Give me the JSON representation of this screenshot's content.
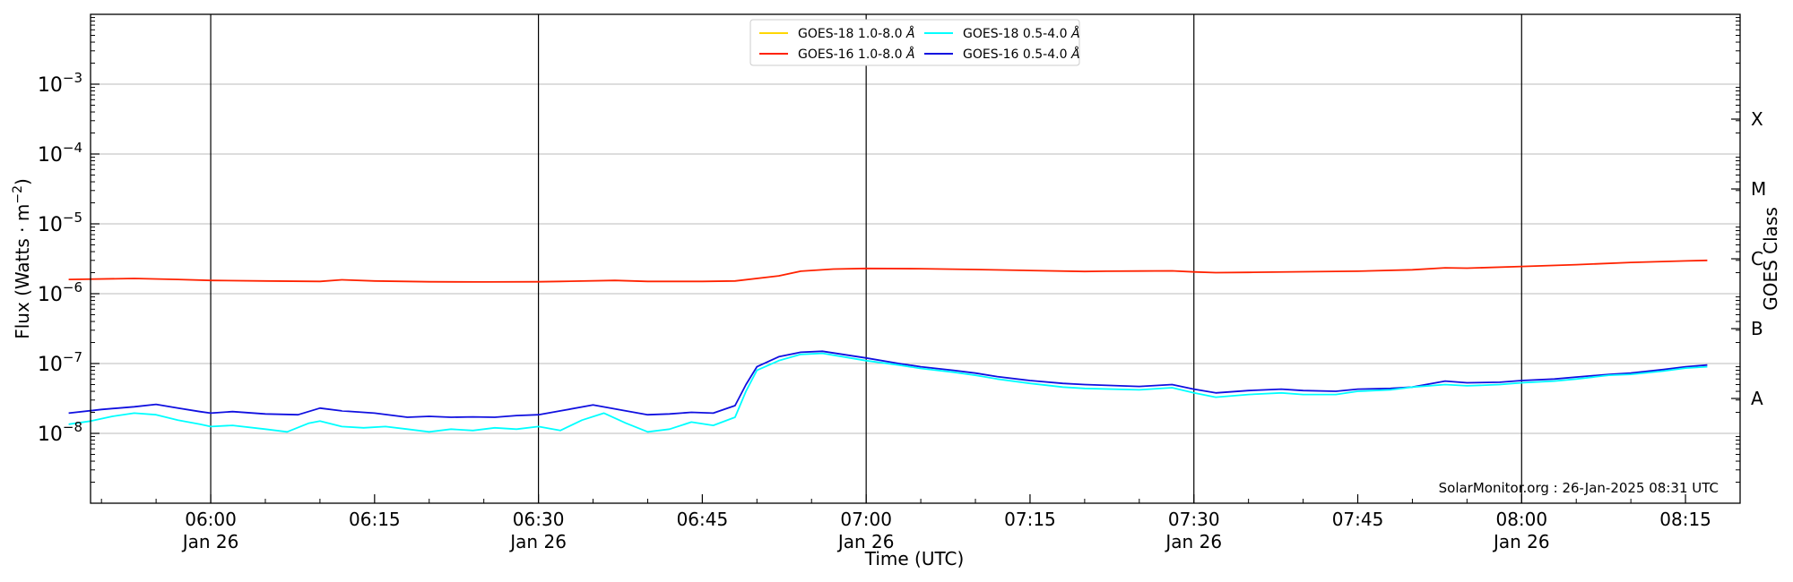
{
  "chart_data": {
    "type": "line",
    "xlabel": "Time (UTC)",
    "ylabel_main": "Flux (Watts · m",
    "ylabel_exp": "−2",
    "ylabel_close": ")",
    "right_label": "GOES Class",
    "credit": "SolarMonitor.org : 26-Jan-2025 08:31 UTC",
    "x_range_minutes": [
      332,
      617
    ],
    "y_scale": "log",
    "ylim_exponents": [
      -9,
      -2
    ],
    "y_ticks": [
      {
        "base": "10",
        "exp": "−8",
        "value": 1e-08
      },
      {
        "base": "10",
        "exp": "−7",
        "value": 1e-07
      },
      {
        "base": "10",
        "exp": "−6",
        "value": 1e-06
      },
      {
        "base": "10",
        "exp": "−5",
        "value": 1e-05
      },
      {
        "base": "10",
        "exp": "−4",
        "value": 0.0001
      },
      {
        "base": "10",
        "exp": "−3",
        "value": 0.001
      }
    ],
    "x_ticks": [
      {
        "time": "06:00",
        "minute": 360,
        "date": "Jan 26",
        "major": true
      },
      {
        "time": "06:15",
        "minute": 375,
        "date": "",
        "major": false
      },
      {
        "time": "06:30",
        "minute": 390,
        "date": "Jan 26",
        "major": true
      },
      {
        "time": "06:45",
        "minute": 405,
        "date": "",
        "major": false
      },
      {
        "time": "07:00",
        "minute": 420,
        "date": "Jan 26",
        "major": true
      },
      {
        "time": "07:15",
        "minute": 435,
        "date": "",
        "major": false
      },
      {
        "time": "07:30",
        "minute": 450,
        "date": "Jan 26",
        "major": true
      },
      {
        "time": "07:45",
        "minute": 465,
        "date": "",
        "major": false
      },
      {
        "time": "08:00",
        "minute": 480,
        "date": "Jan 26",
        "major": true
      },
      {
        "time": "08:15",
        "minute": 495,
        "date": "",
        "major": false
      }
    ],
    "goes_classes": [
      {
        "label": "A",
        "value": 3.16e-08
      },
      {
        "label": "B",
        "value": 3.16e-07
      },
      {
        "label": "C",
        "value": 3.16e-06
      },
      {
        "label": "M",
        "value": 3.16e-05
      },
      {
        "label": "X",
        "value": 0.000316
      }
    ],
    "legend": [
      {
        "name": "GOES-18 1.0-8.0",
        "unit": "Å",
        "color": "#ffd700"
      },
      {
        "name": "GOES-16 1.0-8.0",
        "unit": "Å",
        "color": "#ff2200"
      },
      {
        "name": "GOES-18 0.5-4.0",
        "unit": "Å",
        "color": "#00ffff"
      },
      {
        "name": "GOES-16 0.5-4.0",
        "unit": "Å",
        "color": "#1010e0"
      }
    ],
    "series": [
      {
        "name": "GOES-16 1.0-8.0Å",
        "color": "#ff2200",
        "x": [
          347,
          353,
          357,
          360,
          365,
          370,
          372,
          375,
          380,
          385,
          390,
          392,
          397,
          400,
          405,
          408,
          412,
          414,
          417,
          420,
          425,
          430,
          435,
          440,
          442,
          448,
          450,
          452,
          455,
          460,
          465,
          470,
          473,
          475,
          480,
          485,
          490,
          495,
          497
        ],
        "y": [
          1.6e-06,
          1.65e-06,
          1.6e-06,
          1.55e-06,
          1.52e-06,
          1.5e-06,
          1.58e-06,
          1.52e-06,
          1.48e-06,
          1.47e-06,
          1.48e-06,
          1.5e-06,
          1.55e-06,
          1.5e-06,
          1.5e-06,
          1.52e-06,
          1.8e-06,
          2.1e-06,
          2.25e-06,
          2.3e-06,
          2.28e-06,
          2.22e-06,
          2.15e-06,
          2.08e-06,
          2.1e-06,
          2.12e-06,
          2.05e-06,
          2e-06,
          2.02e-06,
          2.06e-06,
          2.1e-06,
          2.2e-06,
          2.35e-06,
          2.32e-06,
          2.45e-06,
          2.6e-06,
          2.8e-06,
          2.95e-06,
          3e-06
        ]
      },
      {
        "name": "GOES-16 0.5-4.0Å",
        "color": "#1010e0",
        "x": [
          347,
          350,
          353,
          355,
          357,
          359,
          360,
          362,
          365,
          368,
          370,
          372,
          375,
          378,
          380,
          382,
          384,
          386,
          388,
          390,
          392,
          395,
          398,
          400,
          402,
          404,
          406,
          408,
          409,
          410,
          412,
          414,
          416,
          420,
          423,
          425,
          428,
          430,
          432,
          435,
          438,
          440,
          445,
          448,
          450,
          452,
          455,
          458,
          460,
          463,
          465,
          468,
          470,
          473,
          475,
          478,
          480,
          483,
          485,
          488,
          490,
          493,
          495,
          497
        ],
        "y": [
          1.95e-08,
          2.2e-08,
          2.4e-08,
          2.6e-08,
          2.3e-08,
          2.05e-08,
          1.95e-08,
          2.05e-08,
          1.9e-08,
          1.85e-08,
          2.3e-08,
          2.1e-08,
          1.95e-08,
          1.7e-08,
          1.75e-08,
          1.7e-08,
          1.72e-08,
          1.7e-08,
          1.8e-08,
          1.85e-08,
          2.1e-08,
          2.55e-08,
          2.1e-08,
          1.85e-08,
          1.9e-08,
          2e-08,
          1.95e-08,
          2.5e-08,
          5e-08,
          9e-08,
          1.25e-07,
          1.45e-07,
          1.5e-07,
          1.2e-07,
          1e-07,
          9e-08,
          8e-08,
          7.3e-08,
          6.5e-08,
          5.7e-08,
          5.2e-08,
          5e-08,
          4.7e-08,
          5e-08,
          4.3e-08,
          3.8e-08,
          4.1e-08,
          4.3e-08,
          4.1e-08,
          4e-08,
          4.3e-08,
          4.4e-08,
          4.6e-08,
          5.6e-08,
          5.3e-08,
          5.4e-08,
          5.7e-08,
          6e-08,
          6.4e-08,
          7e-08,
          7.3e-08,
          8.2e-08,
          9e-08,
          9.5e-08
        ]
      },
      {
        "name": "GOES-18 0.5-4.0Å",
        "color": "#00ffff",
        "x": [
          347,
          349,
          351,
          353,
          355,
          357,
          359,
          360,
          362,
          365,
          367,
          369,
          370,
          372,
          374,
          376,
          378,
          380,
          382,
          384,
          386,
          388,
          390,
          392,
          394,
          396,
          398,
          400,
          402,
          404,
          406,
          408,
          409,
          410,
          412,
          414,
          416,
          420,
          423,
          425,
          428,
          430,
          432,
          435,
          438,
          440,
          445,
          448,
          450,
          452,
          455,
          458,
          460,
          463,
          465,
          468,
          470,
          473,
          475,
          478,
          480,
          483,
          485,
          488,
          490,
          493,
          495,
          497
        ],
        "y": [
          1.35e-08,
          1.5e-08,
          1.75e-08,
          1.95e-08,
          1.85e-08,
          1.55e-08,
          1.35e-08,
          1.25e-08,
          1.3e-08,
          1.15e-08,
          1.05e-08,
          1.4e-08,
          1.5e-08,
          1.25e-08,
          1.2e-08,
          1.25e-08,
          1.15e-08,
          1.05e-08,
          1.15e-08,
          1.1e-08,
          1.2e-08,
          1.15e-08,
          1.25e-08,
          1.1e-08,
          1.55e-08,
          1.95e-08,
          1.4e-08,
          1.05e-08,
          1.15e-08,
          1.45e-08,
          1.3e-08,
          1.7e-08,
          4e-08,
          8e-08,
          1.1e-07,
          1.35e-07,
          1.4e-07,
          1.1e-07,
          9.5e-08,
          8.5e-08,
          7.5e-08,
          6.8e-08,
          6e-08,
          5.2e-08,
          4.6e-08,
          4.4e-08,
          4.2e-08,
          4.5e-08,
          3.8e-08,
          3.3e-08,
          3.6e-08,
          3.8e-08,
          3.6e-08,
          3.6e-08,
          4e-08,
          4.2e-08,
          4.6e-08,
          5e-08,
          4.8e-08,
          5e-08,
          5.3e-08,
          5.6e-08,
          6e-08,
          6.8e-08,
          7e-08,
          7.8e-08,
          8.6e-08,
          9e-08
        ]
      }
    ]
  }
}
